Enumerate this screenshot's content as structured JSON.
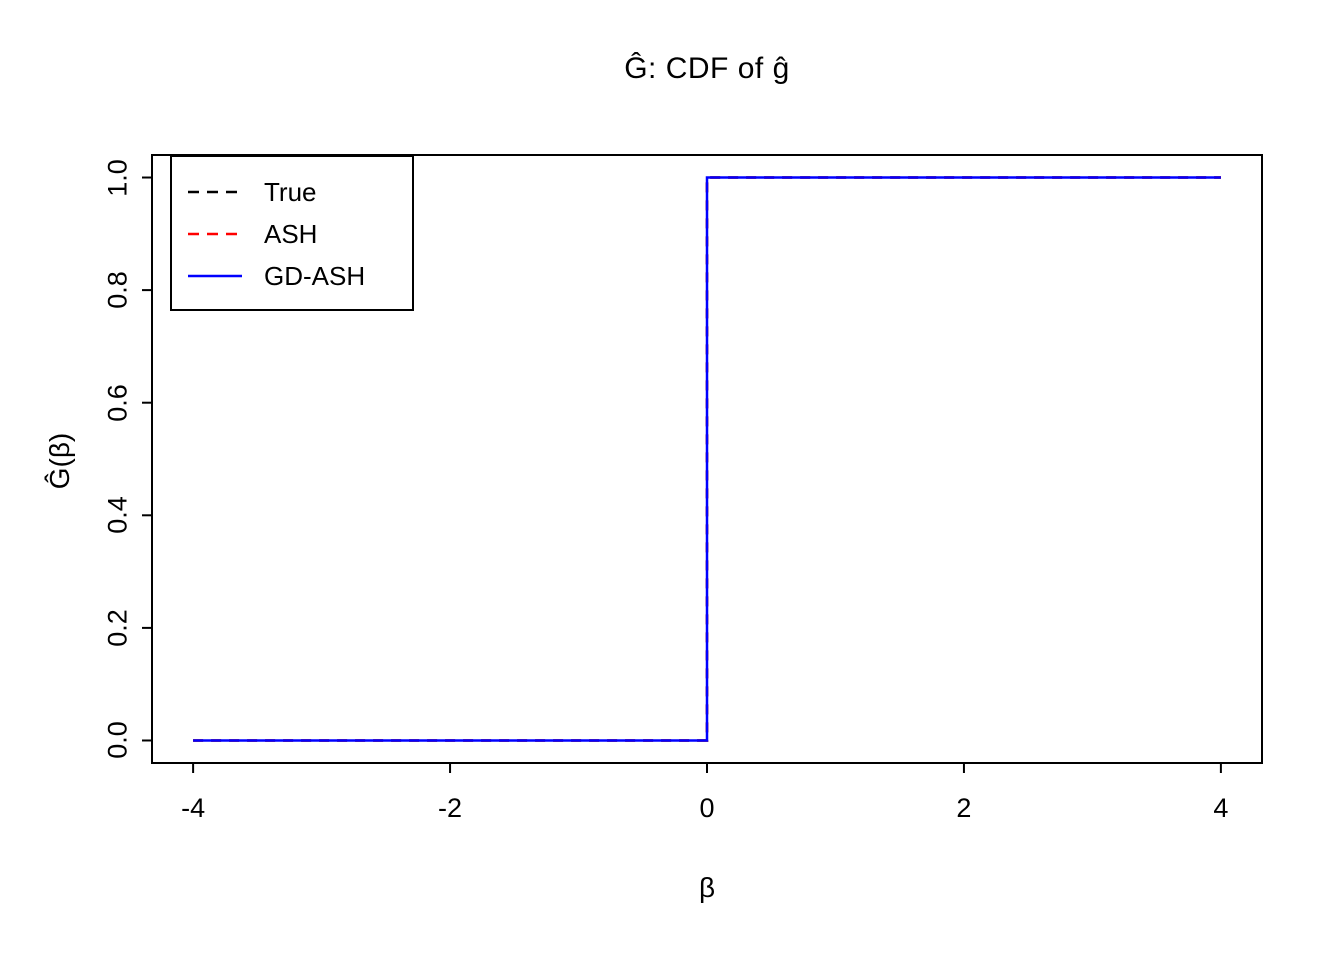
{
  "chart_data": {
    "type": "line",
    "title": "Ĝ: CDF of ĝ",
    "xlabel": "β",
    "ylabel": "Ĝ(β)",
    "xlim": [
      -4,
      4
    ],
    "ylim": [
      0,
      1
    ],
    "grid": false,
    "x_ticks": [
      -4,
      -2,
      0,
      2,
      4
    ],
    "x_tick_labels": [
      "-4",
      "-2",
      "0",
      "2",
      "4"
    ],
    "y_ticks": [
      0,
      0.2,
      0.4,
      0.6,
      0.8,
      1.0
    ],
    "y_tick_labels": [
      "0.0",
      "0.2",
      "0.4",
      "0.6",
      "0.8",
      "1.0"
    ],
    "legend_position": "top-left",
    "series": [
      {
        "name": "True",
        "color": "#000000",
        "style": "dashed",
        "x": [
          -4,
          0,
          0,
          4
        ],
        "y": [
          0,
          0,
          1,
          1
        ]
      },
      {
        "name": "ASH",
        "color": "#ff0000",
        "style": "dashed",
        "x": [
          -4,
          0,
          0,
          4
        ],
        "y": [
          0,
          0,
          1,
          1
        ]
      },
      {
        "name": "GD-ASH",
        "color": "#0000ff",
        "style": "solid",
        "x": [
          -4,
          0,
          0,
          4
        ],
        "y": [
          0,
          0,
          1,
          1
        ]
      }
    ]
  }
}
